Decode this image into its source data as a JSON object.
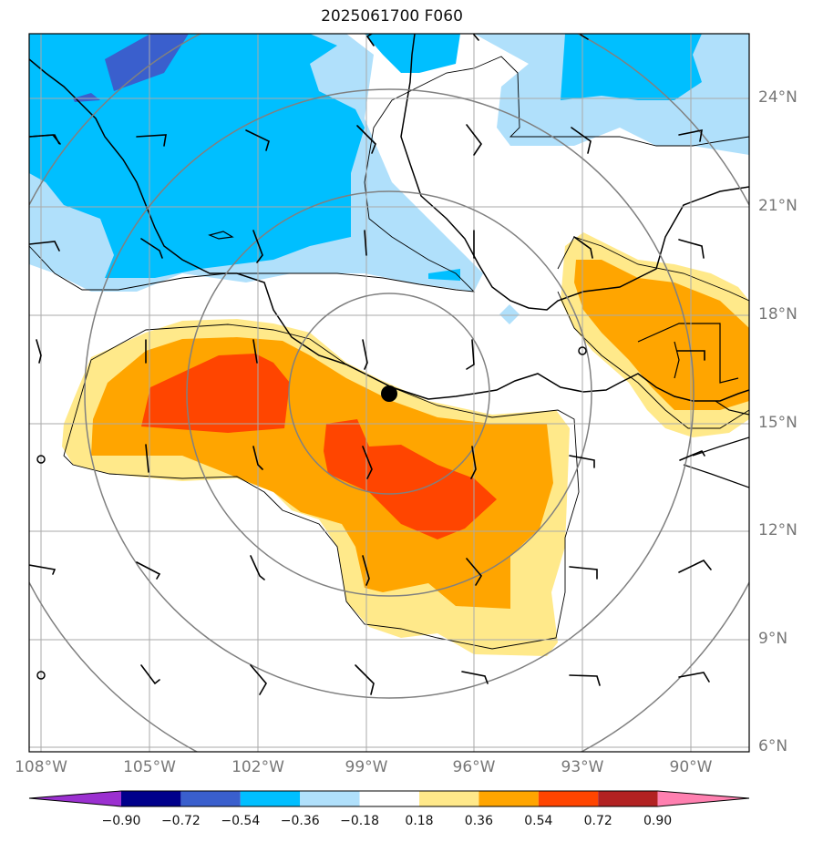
{
  "title": "2025061700 F060",
  "latitude_labels": [
    "24°N",
    "21°N",
    "18°N",
    "15°N",
    "12°N",
    "9°N",
    "6°N"
  ],
  "longitude_labels": [
    "108°W",
    "105°W",
    "102°W",
    "99°W",
    "96°W",
    "93°W",
    "90°W"
  ],
  "colorbar": {
    "labels": [
      "−0.90",
      "−0.72",
      "−0.54",
      "−0.36",
      "−0.18",
      "0.18",
      "0.36",
      "0.54",
      "0.72",
      "0.90"
    ],
    "colors": [
      "#9b30d0",
      "#00008b",
      "#3a5fcd",
      "#00bfff",
      "#b0e0fb",
      "#ffffff",
      "#ffe98a",
      "#ffa500",
      "#ff4500",
      "#b22222",
      "#ff80b0"
    ]
  },
  "marker": {
    "name": "storm-center",
    "lat": 15.8,
    "lon": -98.4
  }
}
